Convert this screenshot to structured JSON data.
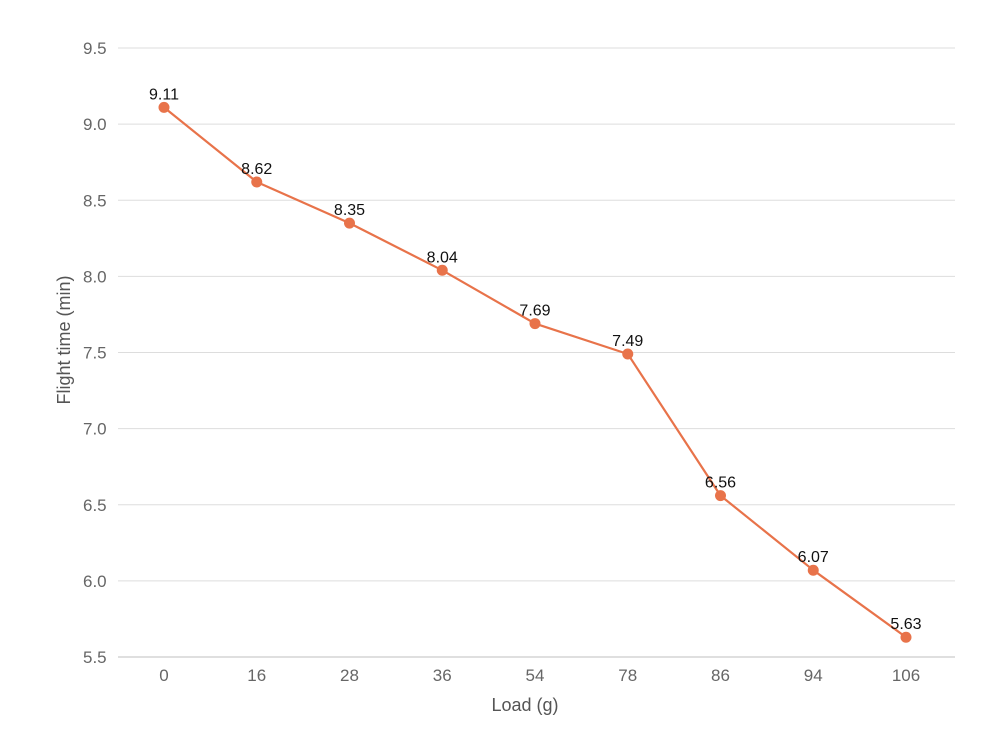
{
  "chart_data": {
    "type": "line",
    "title": "",
    "xlabel": "Load (g)",
    "ylabel": "Flight time (min)",
    "categories": [
      "0",
      "16",
      "28",
      "36",
      "54",
      "78",
      "86",
      "94",
      "106"
    ],
    "y_ticks": [
      "5.5",
      "6.0",
      "6.5",
      "7.0",
      "7.5",
      "8.0",
      "8.5",
      "9.0",
      "9.5"
    ],
    "ylim": [
      5.5,
      9.5
    ],
    "grid": true,
    "legend": "none",
    "series": [
      {
        "values": [
          9.11,
          8.62,
          8.35,
          8.04,
          7.69,
          7.49,
          6.56,
          6.07,
          5.63
        ],
        "labels": [
          "9.11",
          "8.62",
          "8.35",
          "8.04",
          "7.69",
          "7.49",
          "6.56",
          "6.07",
          "5.63"
        ],
        "color": "#e8734a"
      }
    ]
  }
}
